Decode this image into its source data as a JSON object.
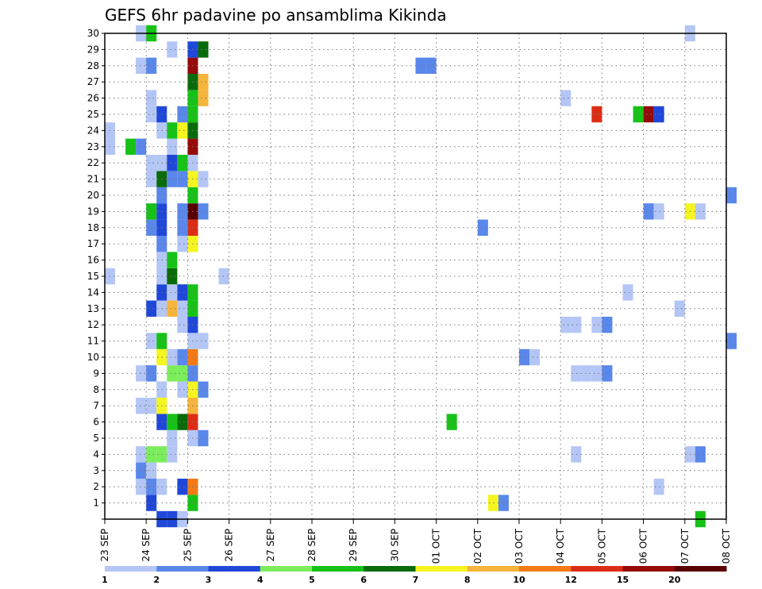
{
  "chart_data": {
    "type": "heatmap",
    "title": "GEFS 6hr padavine po ansamblima Kikinda",
    "xlabel": "",
    "ylabel": "",
    "x_ticks": [
      "23 SEP",
      "24 SEP",
      "25 SEP",
      "26 SEP",
      "27 SEP",
      "28 SEP",
      "29 SEP",
      "30 SEP",
      "01 OCT",
      "02 OCT",
      "03 OCT",
      "04 OCT",
      "05 OCT",
      "06 OCT",
      "07 OCT",
      "08 OCT"
    ],
    "xlim_days": [
      0,
      15
    ],
    "x_step": "6 hours",
    "y_ticks": [
      "1",
      "2",
      "3",
      "4",
      "5",
      "6",
      "7",
      "8",
      "9",
      "10",
      "11",
      "12",
      "13",
      "14",
      "15",
      "16",
      "17",
      "18",
      "19",
      "20",
      "21",
      "22",
      "23",
      "24",
      "25",
      "26",
      "27",
      "28",
      "29",
      "30"
    ],
    "ylim": [
      0,
      30
    ],
    "grid": true,
    "colorbar": {
      "labels": [
        "1",
        "2",
        "3",
        "4",
        "5",
        "6",
        "7",
        "8",
        "10",
        "12",
        "15",
        "20"
      ],
      "colors": [
        "#b4c6f5",
        "#5a87ea",
        "#1f48d8",
        "#7ced5a",
        "#17c217",
        "#0a6b0a",
        "#f5f51f",
        "#f5b43c",
        "#f57a14",
        "#dc2d14",
        "#960a0a",
        "#5a0000"
      ]
    },
    "values": [
      {
        "member": 0,
        "x_day": 1.25,
        "value": 3
      },
      {
        "member": 0,
        "x_day": 1.5,
        "value": 3
      },
      {
        "member": 0,
        "x_day": 1.75,
        "value": 1
      },
      {
        "member": 0,
        "x_day": 14.25,
        "value": 5
      },
      {
        "member": 1,
        "x_day": 1,
        "value": 3
      },
      {
        "member": 1,
        "x_day": 2,
        "value": 5
      },
      {
        "member": 1,
        "x_day": 9.25,
        "value": 7
      },
      {
        "member": 1,
        "x_day": 9.5,
        "value": 2
      },
      {
        "member": 2,
        "x_day": 0.75,
        "value": 1
      },
      {
        "member": 2,
        "x_day": 1,
        "value": 2
      },
      {
        "member": 2,
        "x_day": 1.25,
        "value": 1
      },
      {
        "member": 2,
        "x_day": 1.75,
        "value": 3
      },
      {
        "member": 2,
        "x_day": 2,
        "value": 10
      },
      {
        "member": 2,
        "x_day": 13.25,
        "value": 1
      },
      {
        "member": 3,
        "x_day": 0.75,
        "value": 2
      },
      {
        "member": 3,
        "x_day": 1,
        "value": 1
      },
      {
        "member": 4,
        "x_day": 0.75,
        "value": 1
      },
      {
        "member": 4,
        "x_day": 1,
        "value": 4
      },
      {
        "member": 4,
        "x_day": 1.25,
        "value": 4
      },
      {
        "member": 4,
        "x_day": 1.5,
        "value": 1
      },
      {
        "member": 4,
        "x_day": 11.25,
        "value": 1
      },
      {
        "member": 4,
        "x_day": 14,
        "value": 1
      },
      {
        "member": 4,
        "x_day": 14.25,
        "value": 2
      },
      {
        "member": 5,
        "x_day": 1.5,
        "value": 1
      },
      {
        "member": 5,
        "x_day": 2,
        "value": 1
      },
      {
        "member": 5,
        "x_day": 2.25,
        "value": 2
      },
      {
        "member": 6,
        "x_day": 1.25,
        "value": 3
      },
      {
        "member": 6,
        "x_day": 1.5,
        "value": 5
      },
      {
        "member": 6,
        "x_day": 1.75,
        "value": 6
      },
      {
        "member": 6,
        "x_day": 2,
        "value": 12
      },
      {
        "member": 6,
        "x_day": 8.25,
        "value": 5
      },
      {
        "member": 7,
        "x_day": 0.75,
        "value": 1
      },
      {
        "member": 7,
        "x_day": 1,
        "value": 1
      },
      {
        "member": 7,
        "x_day": 1.25,
        "value": 7
      },
      {
        "member": 7,
        "x_day": 2,
        "value": 8
      },
      {
        "member": 8,
        "x_day": 1.25,
        "value": 1
      },
      {
        "member": 8,
        "x_day": 1.75,
        "value": 1
      },
      {
        "member": 8,
        "x_day": 2,
        "value": 7
      },
      {
        "member": 8,
        "x_day": 2.25,
        "value": 2
      },
      {
        "member": 9,
        "x_day": 0.75,
        "value": 1
      },
      {
        "member": 9,
        "x_day": 1,
        "value": 2
      },
      {
        "member": 9,
        "x_day": 1.5,
        "value": 4
      },
      {
        "member": 9,
        "x_day": 1.75,
        "value": 4
      },
      {
        "member": 9,
        "x_day": 2,
        "value": 2
      },
      {
        "member": 9,
        "x_day": 11.25,
        "value": 1
      },
      {
        "member": 9,
        "x_day": 11.5,
        "value": 1
      },
      {
        "member": 9,
        "x_day": 11.75,
        "value": 1
      },
      {
        "member": 9,
        "x_day": 12,
        "value": 2
      },
      {
        "member": 10,
        "x_day": 1.25,
        "value": 7
      },
      {
        "member": 10,
        "x_day": 1.5,
        "value": 1
      },
      {
        "member": 10,
        "x_day": 1.75,
        "value": 2
      },
      {
        "member": 10,
        "x_day": 2,
        "value": 10
      },
      {
        "member": 10,
        "x_day": 10,
        "value": 2
      },
      {
        "member": 10,
        "x_day": 10.25,
        "value": 1
      },
      {
        "member": 11,
        "x_day": 1,
        "value": 1
      },
      {
        "member": 11,
        "x_day": 1.25,
        "value": 5
      },
      {
        "member": 11,
        "x_day": 2,
        "value": 1
      },
      {
        "member": 11,
        "x_day": 2.25,
        "value": 1
      },
      {
        "member": 11,
        "x_day": 15,
        "value": 2
      },
      {
        "member": 12,
        "x_day": 1.75,
        "value": 1
      },
      {
        "member": 12,
        "x_day": 2,
        "value": 3
      },
      {
        "member": 12,
        "x_day": 11,
        "value": 1
      },
      {
        "member": 12,
        "x_day": 11.25,
        "value": 1
      },
      {
        "member": 12,
        "x_day": 11.75,
        "value": 1
      },
      {
        "member": 12,
        "x_day": 12,
        "value": 2
      },
      {
        "member": 13,
        "x_day": 1,
        "value": 3
      },
      {
        "member": 13,
        "x_day": 1.25,
        "value": 1
      },
      {
        "member": 13,
        "x_day": 1.5,
        "value": 8
      },
      {
        "member": 13,
        "x_day": 1.75,
        "value": 1
      },
      {
        "member": 13,
        "x_day": 2,
        "value": 5
      },
      {
        "member": 13,
        "x_day": 13.75,
        "value": 1
      },
      {
        "member": 14,
        "x_day": 1.25,
        "value": 3
      },
      {
        "member": 14,
        "x_day": 1.5,
        "value": 1
      },
      {
        "member": 14,
        "x_day": 1.75,
        "value": 3
      },
      {
        "member": 14,
        "x_day": 2,
        "value": 5
      },
      {
        "member": 14,
        "x_day": 12.5,
        "value": 1
      },
      {
        "member": 15,
        "x_day": 0,
        "value": 1
      },
      {
        "member": 15,
        "x_day": 1.25,
        "value": 1
      },
      {
        "member": 15,
        "x_day": 1.5,
        "value": 6
      },
      {
        "member": 15,
        "x_day": 2.75,
        "value": 1
      },
      {
        "member": 16,
        "x_day": 1.25,
        "value": 1
      },
      {
        "member": 16,
        "x_day": 1.5,
        "value": 5
      },
      {
        "member": 17,
        "x_day": 1.25,
        "value": 2
      },
      {
        "member": 17,
        "x_day": 1.75,
        "value": 1
      },
      {
        "member": 17,
        "x_day": 2,
        "value": 7
      },
      {
        "member": 18,
        "x_day": 1,
        "value": 2
      },
      {
        "member": 18,
        "x_day": 1.25,
        "value": 3
      },
      {
        "member": 18,
        "x_day": 1.75,
        "value": 2
      },
      {
        "member": 18,
        "x_day": 2,
        "value": 12
      },
      {
        "member": 18,
        "x_day": 9,
        "value": 2
      },
      {
        "member": 19,
        "x_day": 1,
        "value": 5
      },
      {
        "member": 19,
        "x_day": 1.25,
        "value": 3
      },
      {
        "member": 19,
        "x_day": 1.75,
        "value": 2
      },
      {
        "member": 19,
        "x_day": 2,
        "value": 20
      },
      {
        "member": 19,
        "x_day": 2.25,
        "value": 2
      },
      {
        "member": 19,
        "x_day": 13,
        "value": 2
      },
      {
        "member": 19,
        "x_day": 13.25,
        "value": 1
      },
      {
        "member": 19,
        "x_day": 14,
        "value": 7
      },
      {
        "member": 19,
        "x_day": 14.25,
        "value": 1
      },
      {
        "member": 20,
        "x_day": 1.25,
        "value": 2
      },
      {
        "member": 20,
        "x_day": 2,
        "value": 5
      },
      {
        "member": 20,
        "x_day": 15,
        "value": 2
      },
      {
        "member": 21,
        "x_day": 1,
        "value": 1
      },
      {
        "member": 21,
        "x_day": 1.25,
        "value": 6
      },
      {
        "member": 21,
        "x_day": 1.5,
        "value": 2
      },
      {
        "member": 21,
        "x_day": 1.75,
        "value": 2
      },
      {
        "member": 21,
        "x_day": 2,
        "value": 7
      },
      {
        "member": 21,
        "x_day": 2.25,
        "value": 1
      },
      {
        "member": 22,
        "x_day": 1,
        "value": 1
      },
      {
        "member": 22,
        "x_day": 1.25,
        "value": 1
      },
      {
        "member": 22,
        "x_day": 1.5,
        "value": 3
      },
      {
        "member": 22,
        "x_day": 1.75,
        "value": 5
      },
      {
        "member": 22,
        "x_day": 2,
        "value": 1
      },
      {
        "member": 23,
        "x_day": 0,
        "value": 1
      },
      {
        "member": 23,
        "x_day": 0.5,
        "value": 5
      },
      {
        "member": 23,
        "x_day": 0.75,
        "value": 2
      },
      {
        "member": 23,
        "x_day": 1.5,
        "value": 1
      },
      {
        "member": 23,
        "x_day": 2,
        "value": 15
      },
      {
        "member": 24,
        "x_day": 0,
        "value": 1
      },
      {
        "member": 24,
        "x_day": 1.25,
        "value": 1
      },
      {
        "member": 24,
        "x_day": 1.5,
        "value": 5
      },
      {
        "member": 24,
        "x_day": 1.75,
        "value": 7
      },
      {
        "member": 24,
        "x_day": 2,
        "value": 6
      },
      {
        "member": 25,
        "x_day": 1,
        "value": 1
      },
      {
        "member": 25,
        "x_day": 1.25,
        "value": 3
      },
      {
        "member": 25,
        "x_day": 1.75,
        "value": 2
      },
      {
        "member": 25,
        "x_day": 2,
        "value": 5
      },
      {
        "member": 25,
        "x_day": 11.75,
        "value": 12
      },
      {
        "member": 25,
        "x_day": 12.75,
        "value": 5
      },
      {
        "member": 25,
        "x_day": 13,
        "value": 15
      },
      {
        "member": 25,
        "x_day": 13.25,
        "value": 3
      },
      {
        "member": 26,
        "x_day": 1,
        "value": 1
      },
      {
        "member": 26,
        "x_day": 2,
        "value": 5
      },
      {
        "member": 26,
        "x_day": 2.25,
        "value": 8
      },
      {
        "member": 26,
        "x_day": 11,
        "value": 1
      },
      {
        "member": 27,
        "x_day": 2,
        "value": 6
      },
      {
        "member": 27,
        "x_day": 2.25,
        "value": 8
      },
      {
        "member": 28,
        "x_day": 0.75,
        "value": 1
      },
      {
        "member": 28,
        "x_day": 1,
        "value": 2
      },
      {
        "member": 28,
        "x_day": 2,
        "value": 15
      },
      {
        "member": 28,
        "x_day": 7.5,
        "value": 2
      },
      {
        "member": 28,
        "x_day": 7.75,
        "value": 2
      },
      {
        "member": 29,
        "x_day": 1.5,
        "value": 1
      },
      {
        "member": 29,
        "x_day": 2,
        "value": 3
      },
      {
        "member": 29,
        "x_day": 2.25,
        "value": 6
      },
      {
        "member": 30,
        "x_day": 0.75,
        "value": 1
      },
      {
        "member": 30,
        "x_day": 1,
        "value": 5
      },
      {
        "member": 30,
        "x_day": 14,
        "value": 1
      }
    ]
  }
}
